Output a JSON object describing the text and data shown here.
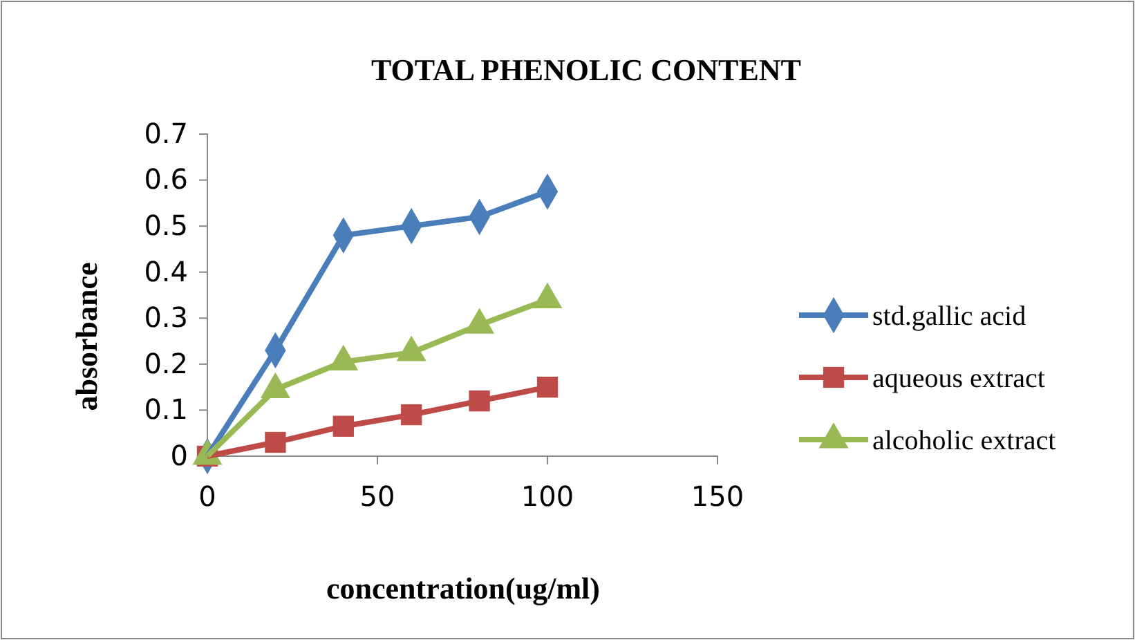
{
  "chart_data": {
    "type": "line",
    "title": "TOTAL PHENOLIC CONTENT",
    "xlabel": "concentration(ug/ml)",
    "ylabel": "absorbance",
    "x": [
      0,
      20,
      40,
      60,
      80,
      100
    ],
    "series": [
      {
        "name": "std.gallic acid",
        "color": "#4a7ebb",
        "marker": "diamond",
        "values": [
          0,
          0.23,
          0.48,
          0.5,
          0.52,
          0.575
        ]
      },
      {
        "name": "aqueous extract",
        "color": "#be4b48",
        "marker": "square",
        "values": [
          0,
          0.03,
          0.065,
          0.09,
          0.12,
          0.15
        ]
      },
      {
        "name": "alcoholic extract",
        "color": "#98b954",
        "marker": "triangle",
        "values": [
          0,
          0.145,
          0.205,
          0.225,
          0.285,
          0.34
        ]
      }
    ],
    "xlim": [
      0,
      150
    ],
    "xticks": [
      0,
      50,
      100,
      150
    ],
    "ylim": [
      0,
      0.7
    ],
    "yticks": [
      0,
      0.1,
      0.2,
      0.3,
      0.4,
      0.5,
      0.6,
      0.7
    ],
    "grid": false,
    "legend": "right",
    "line_style": "solid"
  }
}
